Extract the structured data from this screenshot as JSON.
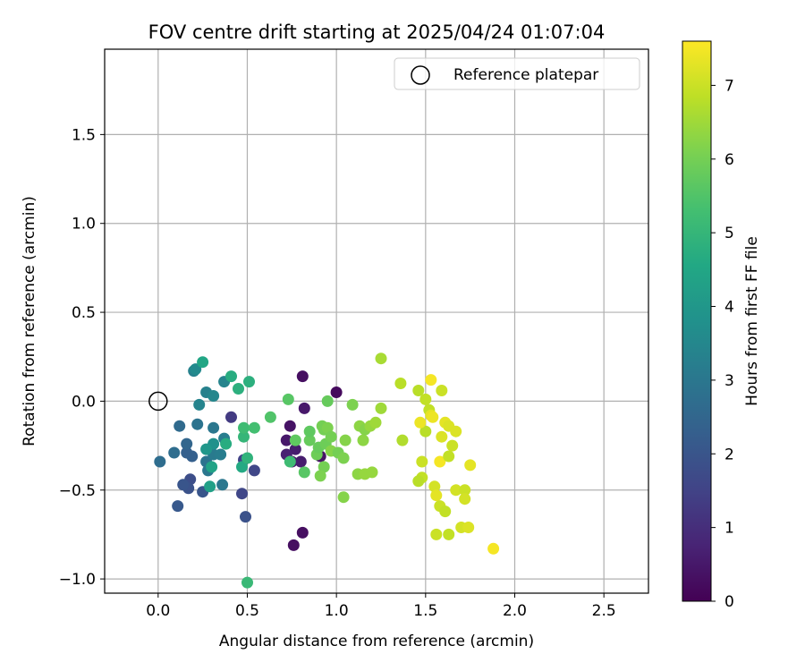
{
  "chart_data": {
    "type": "scatter",
    "title": "FOV centre drift starting at 2025/04/24 01:07:04",
    "xlabel": "Angular distance from reference (arcmin)",
    "ylabel": "Rotation from reference (arcmin)",
    "xlim": [
      -0.3,
      2.75
    ],
    "ylim": [
      -1.08,
      1.98
    ],
    "xticks": [
      0.0,
      0.5,
      1.0,
      1.5,
      2.0,
      2.5
    ],
    "xtick_labels": [
      "0.0",
      "0.5",
      "1.0",
      "1.5",
      "2.0",
      "2.5"
    ],
    "yticks": [
      -1.0,
      -0.5,
      0.0,
      0.5,
      1.0,
      1.5
    ],
    "ytick_labels": [
      "−1.0",
      "−0.5",
      "0.0",
      "0.5",
      "1.0",
      "1.5"
    ],
    "grid": true,
    "legend": {
      "location": "upper right",
      "entries": [
        {
          "label": "Reference platepar",
          "marker": "open-circle"
        }
      ]
    },
    "reference_point": {
      "x": 0.0,
      "y": 0.0
    },
    "colorbar": {
      "label": "Hours from first FF file",
      "colormap": "viridis",
      "range": [
        0,
        7.6
      ],
      "ticks": [
        0,
        1,
        2,
        3,
        4,
        5,
        6,
        7
      ],
      "tick_labels": [
        "0",
        "1",
        "2",
        "3",
        "4",
        "5",
        "6",
        "7"
      ]
    },
    "series": [
      {
        "color_by": "hours",
        "points": [
          {
            "x": 1.0,
            "y": 0.05,
            "c": 0.2
          },
          {
            "x": 0.81,
            "y": 0.14,
            "c": 0.3
          },
          {
            "x": 0.82,
            "y": -0.04,
            "c": 0.5
          },
          {
            "x": 0.74,
            "y": -0.14,
            "c": 0.4
          },
          {
            "x": 0.72,
            "y": -0.22,
            "c": 0.5
          },
          {
            "x": 0.77,
            "y": -0.27,
            "c": 0.6
          },
          {
            "x": 0.72,
            "y": -0.3,
            "c": 0.7
          },
          {
            "x": 0.75,
            "y": -0.34,
            "c": 0.5
          },
          {
            "x": 0.8,
            "y": -0.34,
            "c": 0.6
          },
          {
            "x": 0.91,
            "y": -0.31,
            "c": 0.4
          },
          {
            "x": 0.76,
            "y": -0.81,
            "c": 0.3
          },
          {
            "x": 0.81,
            "y": -0.74,
            "c": 0.3
          },
          {
            "x": 0.41,
            "y": -0.09,
            "c": 1.3
          },
          {
            "x": 0.48,
            "y": -0.33,
            "c": 1.5
          },
          {
            "x": 0.54,
            "y": -0.39,
            "c": 1.6
          },
          {
            "x": 0.47,
            "y": -0.52,
            "c": 1.6
          },
          {
            "x": 0.49,
            "y": -0.65,
            "c": 1.9
          },
          {
            "x": 0.18,
            "y": -0.44,
            "c": 1.8
          },
          {
            "x": 0.17,
            "y": -0.49,
            "c": 1.9
          },
          {
            "x": 0.14,
            "y": -0.47,
            "c": 2.0
          },
          {
            "x": 0.25,
            "y": -0.51,
            "c": 2.0
          },
          {
            "x": 0.11,
            "y": -0.59,
            "c": 2.1
          },
          {
            "x": 0.19,
            "y": -0.31,
            "c": 2.3
          },
          {
            "x": 0.16,
            "y": -0.29,
            "c": 2.3
          },
          {
            "x": 0.16,
            "y": -0.24,
            "c": 2.5
          },
          {
            "x": 0.12,
            "y": -0.14,
            "c": 2.6
          },
          {
            "x": 0.09,
            "y": -0.29,
            "c": 2.7
          },
          {
            "x": 0.01,
            "y": -0.34,
            "c": 2.7
          },
          {
            "x": 0.22,
            "y": -0.13,
            "c": 2.9
          },
          {
            "x": 0.27,
            "y": -0.34,
            "c": 2.9
          },
          {
            "x": 0.28,
            "y": -0.39,
            "c": 3.0
          },
          {
            "x": 0.31,
            "y": -0.3,
            "c": 3.1
          },
          {
            "x": 0.31,
            "y": -0.15,
            "c": 3.0
          },
          {
            "x": 0.36,
            "y": -0.47,
            "c": 3.0
          },
          {
            "x": 0.35,
            "y": -0.3,
            "c": 3.2
          },
          {
            "x": 0.37,
            "y": -0.21,
            "c": 3.2
          },
          {
            "x": 0.23,
            "y": -0.02,
            "c": 3.4
          },
          {
            "x": 0.27,
            "y": 0.05,
            "c": 3.3
          },
          {
            "x": 0.31,
            "y": 0.03,
            "c": 3.5
          },
          {
            "x": 0.37,
            "y": 0.11,
            "c": 3.4
          },
          {
            "x": 0.2,
            "y": 0.17,
            "c": 3.3
          },
          {
            "x": 0.21,
            "y": 0.18,
            "c": 3.6
          },
          {
            "x": 0.31,
            "y": -0.24,
            "c": 3.8
          },
          {
            "x": 0.27,
            "y": -0.27,
            "c": 4.0
          },
          {
            "x": 0.29,
            "y": -0.48,
            "c": 4.3
          },
          {
            "x": 0.3,
            "y": -0.37,
            "c": 4.4
          },
          {
            "x": 0.25,
            "y": 0.22,
            "c": 4.5
          },
          {
            "x": 0.41,
            "y": 0.14,
            "c": 4.7
          },
          {
            "x": 0.45,
            "y": 0.07,
            "c": 4.8
          },
          {
            "x": 0.51,
            "y": 0.11,
            "c": 4.8
          },
          {
            "x": 0.38,
            "y": -0.24,
            "c": 4.7
          },
          {
            "x": 0.47,
            "y": -0.37,
            "c": 4.6
          },
          {
            "x": 0.5,
            "y": -0.32,
            "c": 4.9
          },
          {
            "x": 0.48,
            "y": -0.2,
            "c": 5.0
          },
          {
            "x": 0.48,
            "y": -0.15,
            "c": 5.2
          },
          {
            "x": 0.54,
            "y": -0.15,
            "c": 5.3
          },
          {
            "x": 0.5,
            "y": -1.02,
            "c": 5.1
          },
          {
            "x": 0.74,
            "y": -0.34,
            "c": 5.2
          },
          {
            "x": 0.63,
            "y": -0.09,
            "c": 5.5
          },
          {
            "x": 0.73,
            "y": 0.01,
            "c": 5.6
          },
          {
            "x": 0.82,
            "y": -0.4,
            "c": 5.6
          },
          {
            "x": 0.77,
            "y": -0.22,
            "c": 5.7
          },
          {
            "x": 0.85,
            "y": -0.22,
            "c": 5.8
          },
          {
            "x": 0.85,
            "y": -0.17,
            "c": 5.7
          },
          {
            "x": 0.89,
            "y": -0.3,
            "c": 5.9
          },
          {
            "x": 0.9,
            "y": -0.26,
            "c": 5.8
          },
          {
            "x": 0.92,
            "y": -0.14,
            "c": 6.0
          },
          {
            "x": 0.93,
            "y": -0.16,
            "c": 6.0
          },
          {
            "x": 0.94,
            "y": -0.24,
            "c": 5.9
          },
          {
            "x": 0.95,
            "y": -0.0,
            "c": 5.8
          },
          {
            "x": 0.95,
            "y": -0.15,
            "c": 6.1
          },
          {
            "x": 0.97,
            "y": -0.2,
            "c": 6.0
          },
          {
            "x": 0.97,
            "y": -0.28,
            "c": 6.2
          },
          {
            "x": 1.01,
            "y": -0.29,
            "c": 6.0
          },
          {
            "x": 1.04,
            "y": -0.32,
            "c": 6.1
          },
          {
            "x": 1.05,
            "y": -0.22,
            "c": 6.2
          },
          {
            "x": 0.93,
            "y": -0.37,
            "c": 6.0
          },
          {
            "x": 0.91,
            "y": -0.42,
            "c": 6.1
          },
          {
            "x": 1.04,
            "y": -0.54,
            "c": 6.2
          },
          {
            "x": 1.09,
            "y": -0.02,
            "c": 6.1
          },
          {
            "x": 1.13,
            "y": -0.14,
            "c": 6.3
          },
          {
            "x": 1.15,
            "y": -0.22,
            "c": 6.3
          },
          {
            "x": 1.16,
            "y": -0.16,
            "c": 6.2
          },
          {
            "x": 1.19,
            "y": -0.14,
            "c": 6.4
          },
          {
            "x": 1.22,
            "y": -0.12,
            "c": 6.5
          },
          {
            "x": 1.25,
            "y": -0.04,
            "c": 6.5
          },
          {
            "x": 1.12,
            "y": -0.41,
            "c": 6.3
          },
          {
            "x": 1.16,
            "y": -0.41,
            "c": 6.4
          },
          {
            "x": 1.2,
            "y": -0.4,
            "c": 6.4
          },
          {
            "x": 1.25,
            "y": 0.24,
            "c": 6.6
          },
          {
            "x": 1.36,
            "y": 0.1,
            "c": 6.8
          },
          {
            "x": 1.37,
            "y": -0.22,
            "c": 6.7
          },
          {
            "x": 1.46,
            "y": 0.06,
            "c": 6.8
          },
          {
            "x": 1.5,
            "y": 0.01,
            "c": 6.9
          },
          {
            "x": 1.52,
            "y": -0.05,
            "c": 6.9
          },
          {
            "x": 1.5,
            "y": -0.17,
            "c": 6.8
          },
          {
            "x": 1.48,
            "y": -0.34,
            "c": 7.0
          },
          {
            "x": 1.48,
            "y": -0.43,
            "c": 6.9
          },
          {
            "x": 1.46,
            "y": -0.45,
            "c": 6.8
          },
          {
            "x": 1.55,
            "y": -0.48,
            "c": 7.1
          },
          {
            "x": 1.56,
            "y": -0.53,
            "c": 7.3
          },
          {
            "x": 1.58,
            "y": -0.59,
            "c": 7.0
          },
          {
            "x": 1.61,
            "y": -0.62,
            "c": 6.9
          },
          {
            "x": 1.56,
            "y": -0.75,
            "c": 7.0
          },
          {
            "x": 1.63,
            "y": -0.75,
            "c": 6.9
          },
          {
            "x": 1.53,
            "y": 0.12,
            "c": 7.5
          },
          {
            "x": 1.47,
            "y": -0.12,
            "c": 7.4
          },
          {
            "x": 1.53,
            "y": -0.08,
            "c": 7.3
          },
          {
            "x": 1.54,
            "y": -0.09,
            "c": 7.4
          },
          {
            "x": 1.59,
            "y": 0.06,
            "c": 7.0
          },
          {
            "x": 1.59,
            "y": -0.2,
            "c": 7.2
          },
          {
            "x": 1.58,
            "y": -0.34,
            "c": 7.5
          },
          {
            "x": 1.61,
            "y": -0.12,
            "c": 7.3
          },
          {
            "x": 1.63,
            "y": -0.14,
            "c": 7.2
          },
          {
            "x": 1.63,
            "y": -0.31,
            "c": 6.9
          },
          {
            "x": 1.65,
            "y": -0.25,
            "c": 7.0
          },
          {
            "x": 1.67,
            "y": -0.17,
            "c": 7.2
          },
          {
            "x": 1.67,
            "y": -0.5,
            "c": 7.1
          },
          {
            "x": 1.7,
            "y": -0.71,
            "c": 7.1
          },
          {
            "x": 1.72,
            "y": -0.5,
            "c": 7.0
          },
          {
            "x": 1.72,
            "y": -0.55,
            "c": 7.1
          },
          {
            "x": 1.74,
            "y": -0.71,
            "c": 7.2
          },
          {
            "x": 1.75,
            "y": -0.36,
            "c": 7.3
          },
          {
            "x": 1.88,
            "y": -0.83,
            "c": 7.5
          }
        ]
      }
    ]
  }
}
